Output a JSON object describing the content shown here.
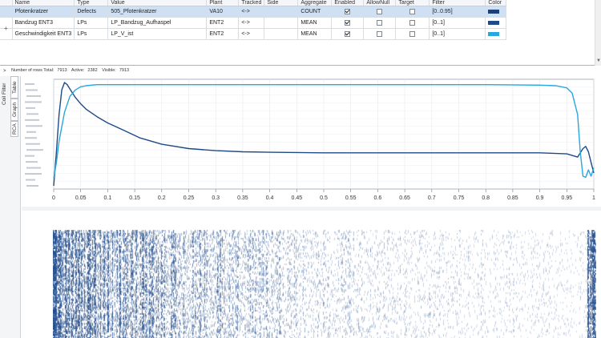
{
  "grid": {
    "columns": [
      "Name",
      "Type",
      "Value",
      "Plant",
      "Tracked",
      "Side",
      "Aggregate",
      "Enabled",
      "AllowNull",
      "Target",
      "Filter",
      "Color"
    ],
    "rows": [
      {
        "name": "Pfotenkratzer",
        "type": "Defects",
        "value": "505_Pfotenkratzer",
        "plant": "VA10",
        "tracked": "<->",
        "side": "",
        "aggregate": "COUNT",
        "enabled": true,
        "allownull": false,
        "target": false,
        "filter": "[0..0.95]",
        "color": "#1b3f7a",
        "selected": true
      },
      {
        "name": "Bandzug ENT3",
        "type": "LPs",
        "value": "LP_Bandzug_Aufhaspel",
        "plant": "ENT2",
        "tracked": "<->",
        "side": "",
        "aggregate": "MEAN",
        "enabled": true,
        "allownull": false,
        "target": false,
        "filter": "[0..1]",
        "color": "#1e4a86",
        "selected": false
      },
      {
        "name": "Geschwindigkeit ENT3",
        "type": "LPs",
        "value": "LP_V_ist",
        "plant": "ENT2",
        "tracked": "<->",
        "side": "",
        "aggregate": "MEAN",
        "enabled": true,
        "allownull": false,
        "target": false,
        "filter": "[0..1]",
        "color": "#29a6dd",
        "selected": false
      }
    ],
    "expander": "+"
  },
  "status": {
    "total_label": "Number of rows Total:",
    "total": "7913",
    "active_label": "Active:",
    "active": "2382",
    "visible_label": "Visible:",
    "visible": "7913",
    "collapse_glyph": ">"
  },
  "tabs": {
    "coil_filter": "Coil Filter",
    "table": "Table",
    "graph": "Graph",
    "rca": "RCA"
  },
  "chart_data": {
    "type": "line",
    "xlim": [
      0,
      1
    ],
    "x_ticks": [
      "0",
      "0.05",
      "0.1",
      "0.15",
      "0.2",
      "0.25",
      "0.3",
      "0.35",
      "0.4",
      "0.45",
      "0.5",
      "0.55",
      "0.6",
      "0.65",
      "0.7",
      "0.75",
      "0.8",
      "0.85",
      "0.9",
      "0.95",
      "1"
    ],
    "grid": true,
    "series": [
      {
        "color": "#1e4a86",
        "x": [
          0,
          0.005,
          0.01,
          0.015,
          0.02,
          0.025,
          0.03,
          0.04,
          0.05,
          0.06,
          0.08,
          0.1,
          0.13,
          0.16,
          0.2,
          0.25,
          0.3,
          0.35,
          0.4,
          0.5,
          0.6,
          0.7,
          0.8,
          0.9,
          0.95,
          0.97,
          0.98,
          0.985,
          0.99,
          0.995,
          1
        ],
        "y": [
          0.03,
          0.35,
          0.7,
          0.93,
          1.0,
          0.98,
          0.94,
          0.86,
          0.8,
          0.75,
          0.68,
          0.62,
          0.55,
          0.48,
          0.42,
          0.38,
          0.36,
          0.35,
          0.345,
          0.34,
          0.34,
          0.34,
          0.34,
          0.34,
          0.33,
          0.3,
          0.38,
          0.4,
          0.35,
          0.25,
          0.15
        ]
      },
      {
        "color": "#29a6dd",
        "x": [
          0,
          0.005,
          0.01,
          0.02,
          0.03,
          0.04,
          0.05,
          0.06,
          0.08,
          0.1,
          0.2,
          0.4,
          0.6,
          0.8,
          0.9,
          0.93,
          0.95,
          0.96,
          0.97,
          0.975,
          0.98,
          0.985,
          0.99,
          0.995,
          1
        ],
        "y": [
          0.1,
          0.25,
          0.45,
          0.72,
          0.87,
          0.93,
          0.96,
          0.97,
          0.98,
          0.98,
          0.98,
          0.98,
          0.98,
          0.98,
          0.975,
          0.97,
          0.95,
          0.9,
          0.7,
          0.35,
          0.12,
          0.11,
          0.18,
          0.12,
          0.2
        ]
      }
    ]
  }
}
